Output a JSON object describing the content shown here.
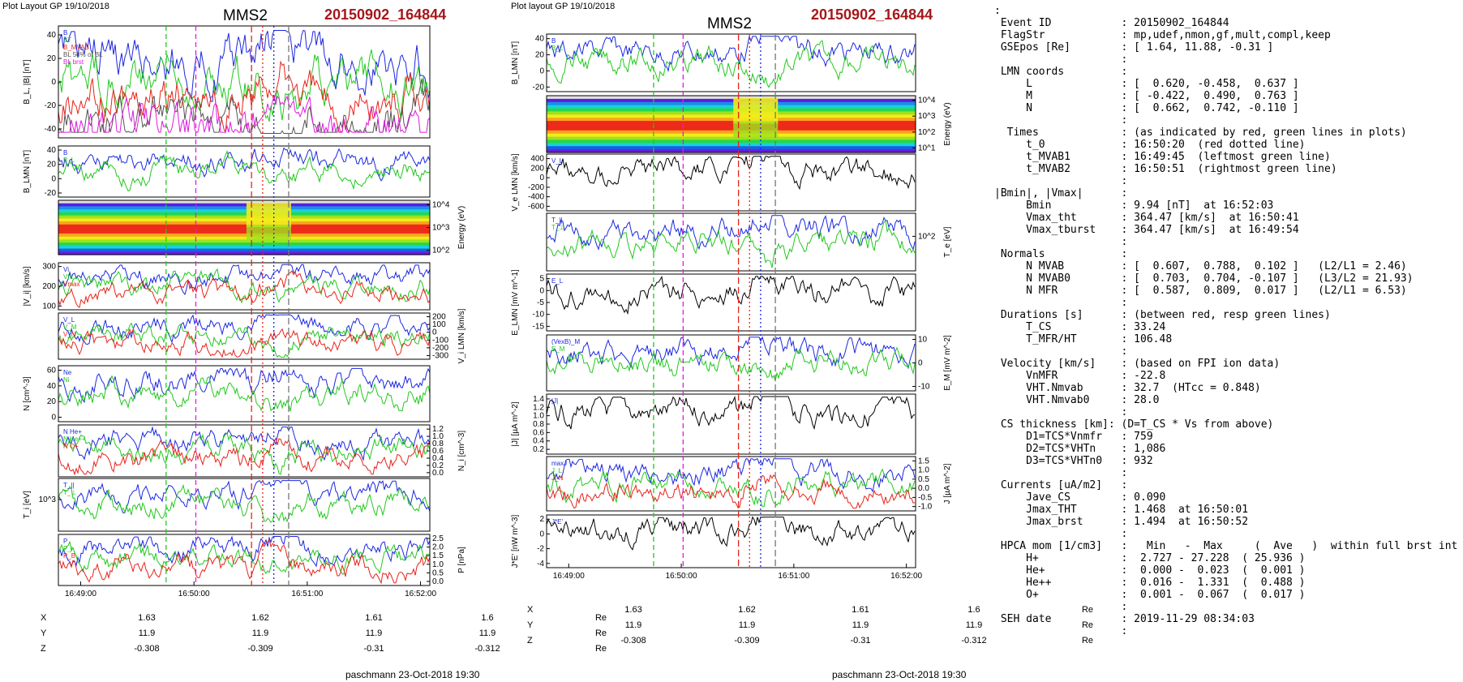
{
  "left_figure": {
    "header": "Plot Layout GP 19/10/2018",
    "spacecraft": "MMS2",
    "event": "20150902_164844",
    "footer": "paschmann 23-Oct-2018 19:30",
    "panels": [
      {
        "ylabel": "B_L, |B| [nT]",
        "side": "left",
        "ticks": [
          "40",
          "20",
          "0",
          "-20",
          "-40"
        ],
        "legend": [
          "B",
          "BT",
          "B_MVAB",
          "BL 50% of BL",
          "BL brst"
        ]
      },
      {
        "ylabel": "B_LMN [nT]",
        "side": "left",
        "ticks": [
          "40",
          "20",
          "0",
          "-20"
        ],
        "legend": [
          "B",
          "B_L"
        ]
      },
      {
        "ylabel": "Energy (eV)",
        "side": "right",
        "ticks": [
          "10^4",
          "10^3",
          "10^2"
        ],
        "legend": []
      },
      {
        "ylabel": "|V_i| [km/s]",
        "side": "left",
        "ticks": [
          "300",
          "200",
          "100"
        ],
        "legend": [
          "Vi",
          "Vht",
          "Vmax"
        ]
      },
      {
        "ylabel": "V_i LMN [km/s]",
        "side": "right",
        "ticks": [
          "200",
          "100",
          "0",
          "-100",
          "-200",
          "-300"
        ],
        "legend": [
          "V_L",
          "V_M",
          "V_N"
        ]
      },
      {
        "ylabel": "N [cm^-3]",
        "side": "left",
        "ticks": [
          "60",
          "40",
          "20",
          "0"
        ],
        "legend": [
          "Ne",
          "Ni"
        ]
      },
      {
        "ylabel": "N_i [cm^-3]",
        "side": "right",
        "ticks": [
          "1.2",
          "1.0",
          "0.8",
          "0.6",
          "0.4",
          "0.2",
          "0.0"
        ],
        "legend": [
          "N He+",
          "N He++",
          "N O+"
        ]
      },
      {
        "ylabel": "T_i [eV]",
        "side": "left",
        "ticks": [
          "10^3"
        ],
        "legend": [
          "T_||",
          "T_⊥"
        ]
      },
      {
        "ylabel": "P [nPa]",
        "side": "right",
        "ticks": [
          "2.5",
          "2.0",
          "1.5",
          "1.0",
          "0.5",
          "0.0"
        ],
        "legend": [
          "P",
          "P_i",
          "P_B"
        ]
      }
    ],
    "time_ticks": [
      "16:49:00",
      "16:50:00",
      "16:51:00",
      "16:52:00"
    ],
    "position": {
      "rows": [
        {
          "label": "X",
          "values": [
            "1.63",
            "1.62",
            "1.61",
            "1.6"
          ],
          "unit": "Re"
        },
        {
          "label": "Y",
          "values": [
            "11.9",
            "11.9",
            "11.9",
            "11.9"
          ],
          "unit": "Re"
        },
        {
          "label": "Z",
          "values": [
            "-0.308",
            "-0.309",
            "-0.31",
            "-0.312"
          ],
          "unit": "Re"
        }
      ]
    }
  },
  "right_figure": {
    "header": "Plot layout GP 19/10/2018",
    "spacecraft": "MMS2",
    "event": "20150902_164844",
    "footer": "paschmann 23-Oct-2018 19:30",
    "panels": [
      {
        "ylabel": "B_LMN [nT]",
        "side": "left",
        "ticks": [
          "40",
          "20",
          "0",
          "-20"
        ],
        "legend": [
          "B",
          "B_L"
        ]
      },
      {
        "ylabel": "Energy (eV)",
        "side": "right",
        "ticks": [
          "10^4",
          "10^3",
          "10^2",
          "10^1"
        ],
        "legend": []
      },
      {
        "ylabel": "V_e LMN [km/s]",
        "side": "left",
        "ticks": [
          "400",
          "200",
          "0",
          "-200",
          "-400",
          "-600"
        ],
        "legend": [
          "V_L"
        ]
      },
      {
        "ylabel": "T_e [eV]",
        "side": "right",
        "ticks": [
          "10^2"
        ],
        "legend": [
          "T_||",
          "T_⊥"
        ]
      },
      {
        "ylabel": "E_LMN [mV m^-1]",
        "side": "left",
        "ticks": [
          "5",
          "0",
          "-5",
          "-10",
          "-15"
        ],
        "legend": [
          "E_L"
        ]
      },
      {
        "ylabel": "E_M [mV m^-2]",
        "side": "right",
        "ticks": [
          "10",
          "0",
          "-10"
        ],
        "legend": [
          "(VexB)_M",
          "E_M"
        ]
      },
      {
        "ylabel": "|J| [µA m^-2]",
        "side": "left",
        "ticks": [
          "1.4",
          "1.2",
          "1.0",
          "0.8",
          "0.6",
          "0.4",
          "0.2"
        ],
        "legend": [
          "|J|"
        ]
      },
      {
        "ylabel": "J [µA m^-2]",
        "side": "right",
        "ticks": [
          "1.5",
          "1.0",
          "0.5",
          "0.0",
          "-0.5",
          "-1.0"
        ],
        "legend": [
          "maxJ",
          "J_L",
          "J_N"
        ]
      },
      {
        "ylabel": "J*E' [nW m^-3]",
        "side": "left",
        "ticks": [
          "2",
          "0",
          "-2",
          "-4"
        ],
        "legend": [
          "J*E'"
        ]
      }
    ],
    "time_ticks": [
      "16:49:00",
      "16:50:00",
      "16:51:00",
      "16:52:00"
    ],
    "position": {
      "rows": [
        {
          "label": "X",
          "values": [
            "1.63",
            "1.62",
            "1.61",
            "1.6"
          ],
          "unit": "Re"
        },
        {
          "label": "Y",
          "values": [
            "11.9",
            "11.9",
            "11.9",
            "11.9"
          ],
          "unit": "Re"
        },
        {
          "label": "Z",
          "values": [
            "-0.308",
            "-0.309",
            "-0.31",
            "-0.312"
          ],
          "unit": "Re"
        }
      ]
    }
  },
  "info_lines": [
    ":",
    " Event ID           : 20150902_164844",
    " FlagStr            : mp,udef,nmon,gf,mult,compl,keep",
    " GSEpos [Re]        : [ 1.64, 11.88, -0.31 ]",
    "                    :",
    " LMN coords         :",
    "     L              : [  0.620, -0.458,  0.637 ]",
    "     M              : [ -0.422,  0.490,  0.763 ]",
    "     N              : [  0.662,  0.742, -0.110 ]",
    "                    :",
    "  Times             : (as indicated by red, green lines in plots)",
    "     t_0            : 16:50:20  (red dotted line)",
    "     t_MVAB1        : 16:49:45  (leftmost green line)",
    "     t_MVAB2        : 16:50:51  (rightmost green line)",
    "                    :",
    "|Bmin|, |Vmax|      :",
    "     Bmin           : 9.94 [nT]  at 16:52:03",
    "     Vmax_tht       : 364.47 [km/s]  at 16:50:41",
    "     Vmax_tburst    : 364.47 [km/s]  at 16:49:54",
    "                    :",
    " Normals            :",
    "     N MVAB         : [  0.607,  0.788,  0.102 ]   (L2/L1 = 2.46)",
    "     N MVAB0        : [  0.703,  0.704, -0.107 ]   (L3/L2 = 21.93)",
    "     N MFR          : [  0.587,  0.809,  0.017 ]   (L2/L1 = 6.53)",
    "                    :",
    " Durations [s]      : (between red, resp green lines)",
    "     T_CS           : 33.24",
    "     T_MFR/HT       : 106.48",
    "                    :",
    " Velocity [km/s]    : (based on FPI ion data)",
    "     VnMFR          : -22.8",
    "     VHT.Nmvab      : 32.7  (HTcc = 0.848)",
    "     VHT.Nmvab0     : 28.0",
    "                    :",
    " CS thickness [km]: (D=T_CS * Vs from above)",
    "     D1=TCS*Vnmfr   : 759",
    "     D2=TCS*VHTn    : 1,086",
    "     D3=TCS*VHTn0   : 932",
    "                    :",
    " Currents [uA/m2]   :",
    "     Jave_CS        : 0.090",
    "     Jmax_THT       : 1.468  at 16:50:01",
    "     Jmax_brst      : 1.494  at 16:50:52",
    "                    :",
    " HPCA mom [1/cm3]   :   Min   -  Max     (  Ave   )  within full brst int",
    "     H+             :  2.727 - 27.228  ( 25.936 )",
    "     He+            :  0.000 -  0.023  (  0.001 )",
    "     He++           :  0.016 -  1.331  (  0.488 )",
    "     O+             :  0.001 -  0.067  (  0.017 )",
    "                    :",
    " SEH date           : 2019-11-29 08:34:03",
    "                    :"
  ],
  "colors": {
    "event": "#a5171b",
    "red": "#e8231b",
    "green": "#22c81e",
    "blue": "#1b27e0",
    "magenta": "#e01be0"
  }
}
